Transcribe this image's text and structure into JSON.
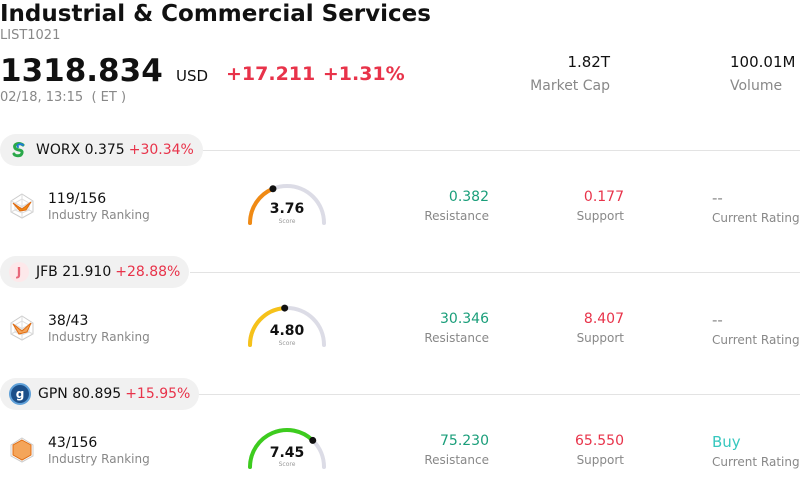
{
  "header": {
    "title": "Industrial & Commercial Services",
    "code": "LIST1021",
    "price": "1318.834",
    "currency": "USD",
    "change": "+17.211 +1.31%",
    "time": "02/18, 13:15  ( ET )",
    "market_cap_value": "1.82T",
    "market_cap_label": "Market Cap",
    "volume_value": "100.01M",
    "volume_label": "Volume"
  },
  "colors": {
    "up": "#e8334a",
    "resistance": "#1a9e7a",
    "buy": "#36c7be"
  },
  "stocks": [
    {
      "symbol": "WORX 0.375",
      "pct": "+30.34%",
      "logo_icon": "worx-logo-icon",
      "ranking": "119/156",
      "ranking_label": "Industry Ranking",
      "score": "3.76",
      "score_value": 3.76,
      "score_label": "Score",
      "score_color": "#f08a14",
      "resistance": "0.382",
      "resistance_label": "Resistance",
      "support": "0.177",
      "support_label": "Support",
      "rating": "--",
      "rating_label": "Current Rating"
    },
    {
      "symbol": "JFB 21.910",
      "pct": "+28.88%",
      "logo_icon": "jfb-logo-icon",
      "logo_text": "J",
      "ranking": "38/43",
      "ranking_label": "Industry Ranking",
      "score": "4.80",
      "score_value": 4.8,
      "score_label": "Score",
      "score_color": "#f6c21a",
      "resistance": "30.346",
      "resistance_label": "Resistance",
      "support": "8.407",
      "support_label": "Support",
      "rating": "--",
      "rating_label": "Current Rating"
    },
    {
      "symbol": "GPN 80.895",
      "pct": "+15.95%",
      "logo_icon": "gpn-logo-icon",
      "logo_text": "g",
      "ranking": "43/156",
      "ranking_label": "Industry Ranking",
      "score": "7.45",
      "score_value": 7.45,
      "score_label": "Score",
      "score_color": "#3dcc1e",
      "resistance": "75.230",
      "resistance_label": "Resistance",
      "support": "65.550",
      "support_label": "Support",
      "rating": "Buy",
      "rating_label": "Current Rating"
    }
  ]
}
